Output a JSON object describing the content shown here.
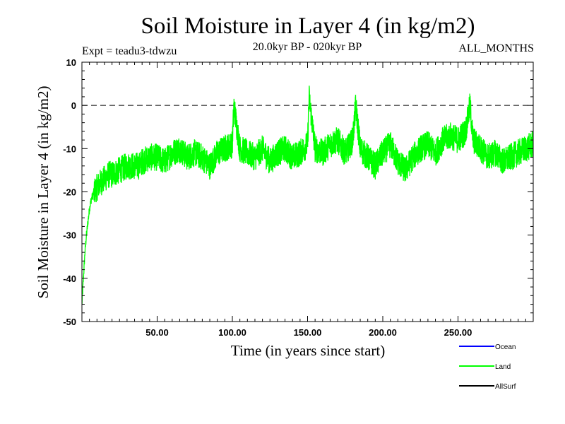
{
  "chart_data": {
    "type": "line",
    "title": "Soil Moisture in Layer 4 (in kg/m2)",
    "experiment": "Expt = teadu3-tdwzu",
    "period": "20.0kyr BP - 020kyr BP",
    "months": "ALL_MONTHS",
    "xlabel": "Time (in years since start)",
    "ylabel": "Soil Moisture in Layer 4 (in kg/m2)",
    "xlim": [
      0,
      300
    ],
    "ylim": [
      -50,
      10
    ],
    "xticks": [
      50,
      100,
      150,
      200,
      250
    ],
    "xtick_labels": [
      "50.00",
      "100.00",
      "150.00",
      "200.00",
      "250.00"
    ],
    "yticks": [
      10,
      0,
      -10,
      -20,
      -30,
      -40,
      -50
    ],
    "ytick_labels": [
      "10",
      "0",
      "-10",
      "-20",
      "-30",
      "-40",
      "-50"
    ],
    "reference_line": 0,
    "series": [
      {
        "name": "Land",
        "color": "#00ff00",
        "x": [
          0,
          1,
          2,
          3,
          4,
          5,
          6,
          8,
          10,
          12,
          15,
          18,
          20,
          25,
          30,
          35,
          38,
          40,
          45,
          50,
          55,
          60,
          65,
          70,
          75,
          80,
          85,
          90,
          95,
          100,
          101,
          105,
          110,
          115,
          120,
          125,
          130,
          135,
          140,
          145,
          150,
          151,
          155,
          160,
          165,
          170,
          175,
          180,
          182,
          185,
          190,
          195,
          200,
          205,
          210,
          215,
          220,
          225,
          230,
          235,
          240,
          245,
          250,
          255,
          258,
          260,
          265,
          270,
          275,
          280,
          285,
          290,
          295,
          300
        ],
        "values": [
          -46,
          -40,
          -34,
          -30,
          -27,
          -24,
          -22,
          -20,
          -19,
          -18,
          -17,
          -16,
          -16,
          -15,
          -14,
          -14,
          -14,
          -13,
          -12,
          -12,
          -13,
          -11,
          -10,
          -12,
          -11,
          -12,
          -14,
          -11,
          -10,
          -9,
          0,
          -10,
          -11,
          -12,
          -10,
          -13,
          -11,
          -10,
          -12,
          -11,
          -9,
          2,
          -10,
          -11,
          -9,
          -8,
          -11,
          -8,
          0,
          -10,
          -12,
          -14,
          -11,
          -9,
          -13,
          -15,
          -12,
          -10,
          -9,
          -11,
          -8,
          -7,
          -8,
          -6,
          0,
          -8,
          -10,
          -12,
          -11,
          -13,
          -12,
          -11,
          -10,
          -9
        ]
      }
    ],
    "legend": [
      {
        "label": "Ocean",
        "color": "#0000ff"
      },
      {
        "label": "Land",
        "color": "#00ff00"
      },
      {
        "label": "AllSurf",
        "color": "#000000"
      }
    ]
  }
}
